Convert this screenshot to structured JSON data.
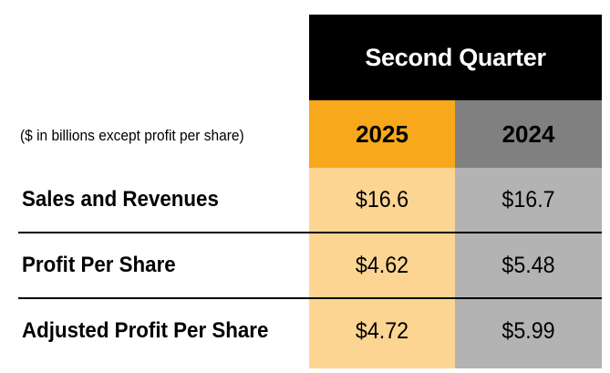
{
  "table": {
    "period_header": "Second Quarter",
    "units_note": "($ in billions except profit per share)",
    "columns": [
      "2025",
      "2024"
    ],
    "rows": [
      {
        "label": "Sales and Revenues",
        "values": [
          "$16.6",
          "$16.7"
        ]
      },
      {
        "label": "Profit Per Share",
        "values": [
          "$4.62",
          "$5.48"
        ]
      },
      {
        "label": "Adjusted Profit Per Share",
        "values": [
          "$4.72",
          "$5.99"
        ]
      }
    ]
  },
  "colors": {
    "header_background": "#000000",
    "current_year_header": "#f7a81b",
    "current_year_body": "#fcd593",
    "prior_year_header": "#808080",
    "prior_year_body": "#b3b3b3"
  }
}
